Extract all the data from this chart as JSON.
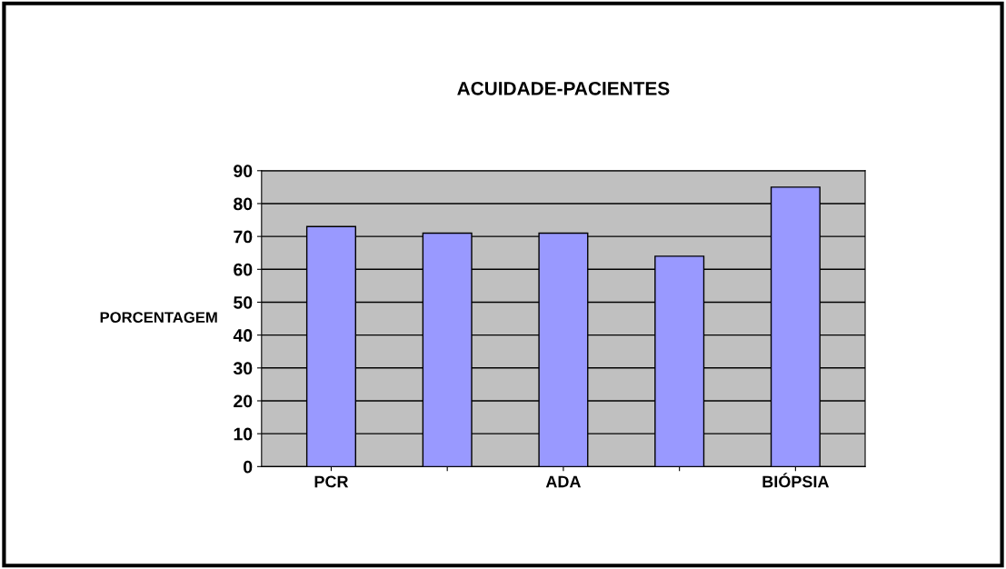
{
  "chart_data": {
    "type": "bar",
    "title": "ACUIDADE-PACIENTES",
    "ylabel": "PORCENTAGEM",
    "categories": [
      "PCR",
      null,
      "ADA",
      null,
      "BIÓPSIA"
    ],
    "values": [
      73,
      71,
      71,
      64,
      85
    ],
    "color": "#9999ff",
    "ylim": [
      0,
      90
    ],
    "yticks": [
      0,
      10,
      20,
      30,
      40,
      50,
      60,
      70,
      80,
      90
    ],
    "grid": "y",
    "legend": false
  }
}
